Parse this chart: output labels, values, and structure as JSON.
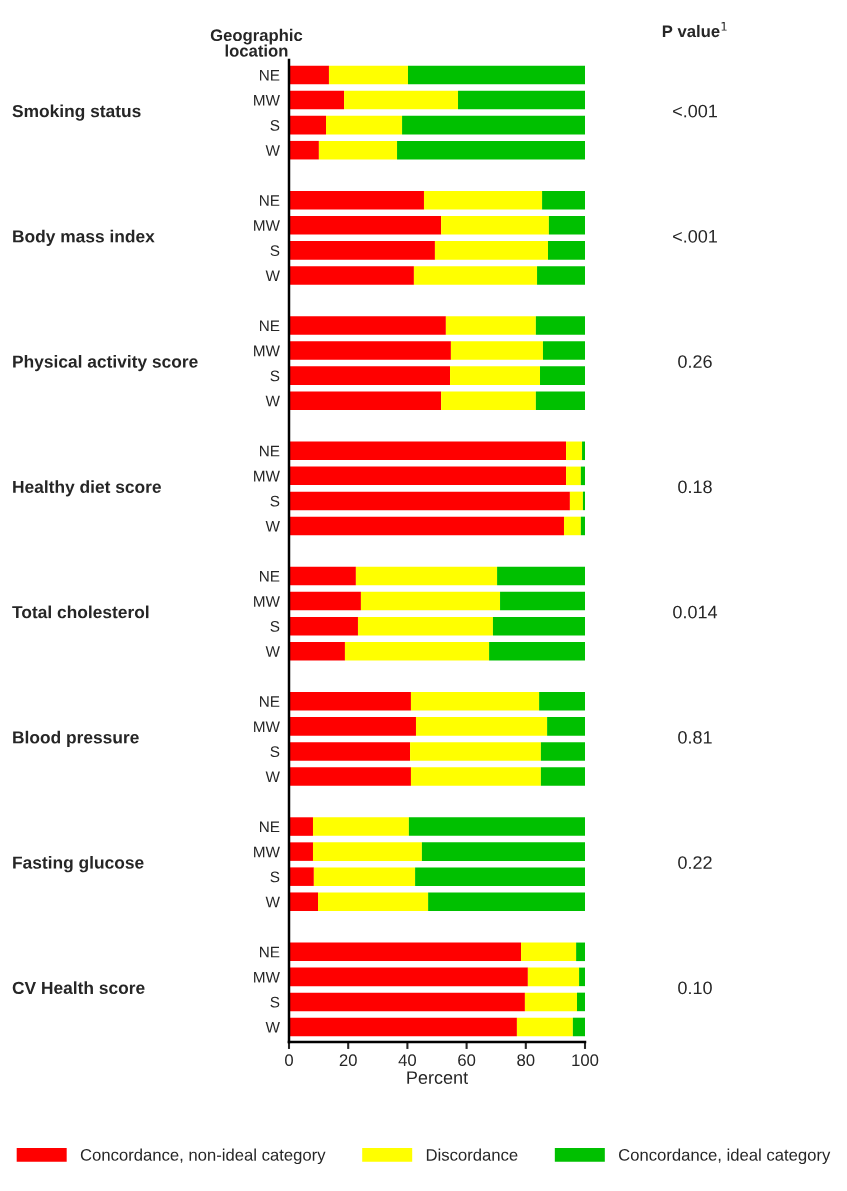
{
  "chart_data": {
    "type": "bar",
    "orientation": "horizontal",
    "stacked": true,
    "ylabel": "Geographic\nlocation",
    "xlabel": "Percent",
    "categories": [
      "NE",
      "MW",
      "S",
      "W",
      null,
      "NE",
      "MW",
      "S",
      "W",
      null,
      "NE",
      "MW",
      "S",
      "W",
      null,
      "NE",
      "MW",
      "S",
      "W",
      null,
      "NE",
      "MW",
      "S",
      "W",
      null,
      "NE",
      "MW",
      "S",
      "W",
      null,
      "NE",
      "MW",
      "S",
      "W",
      null,
      "NE",
      "MW",
      "S",
      "W"
    ],
    "xlim": [
      0,
      100
    ],
    "xticks": [
      0,
      20,
      40,
      60,
      80,
      100
    ],
    "legend": "bottom",
    "annotations": [
      "P value$^{1}$",
      "Smoking status",
      "Body mass index",
      "Physical activity score",
      "Healthy diet score",
      "Total cholesterol",
      "Blood pressure",
      "Fasting glucose",
      "CV Health score",
      "<.001",
      "<.001",
      "0.26",
      "0.18",
      "0.014",
      "0.81",
      "0.22",
      "0.10"
    ],
    "series": [
      {
        "name": "Concordance, non-ideal category",
        "color": "#ff0000",
        "values": [
          13.5,
          18.6,
          12.5,
          10.1,
          null,
          45.6,
          51.4,
          49.3,
          42.2,
          null,
          53.0,
          54.7,
          54.4,
          51.4,
          null,
          93.6,
          93.6,
          94.9,
          92.9,
          null,
          22.6,
          24.3,
          23.3,
          18.9,
          null,
          41.2,
          42.9,
          40.9,
          41.2,
          null,
          8.1,
          8.1,
          8.4,
          9.8,
          null,
          78.4,
          80.7,
          79.7,
          77.0
        ]
      },
      {
        "name": "Discordance",
        "color": "#ffff00",
        "values": [
          26.7,
          38.5,
          25.7,
          26.4,
          null,
          39.9,
          36.4,
          38.2,
          41.6,
          null,
          30.4,
          31.1,
          30.4,
          32.0,
          null,
          5.4,
          5.0,
          4.4,
          5.7,
          null,
          47.7,
          47.0,
          45.6,
          48.7,
          null,
          43.3,
          44.3,
          44.2,
          43.9,
          null,
          32.4,
          36.8,
          34.2,
          37.2,
          null,
          18.6,
          17.3,
          17.6,
          18.9
        ]
      },
      {
        "name": "Concordance, ideal category",
        "color": "#00c000",
        "values": [
          59.8,
          42.9,
          61.8,
          63.5,
          null,
          14.5,
          12.2,
          12.5,
          16.2,
          null,
          16.6,
          14.2,
          15.2,
          16.6,
          null,
          1.0,
          1.4,
          0.7,
          1.4,
          null,
          29.7,
          28.7,
          31.1,
          32.4,
          null,
          15.5,
          12.8,
          14.9,
          14.9,
          null,
          59.5,
          55.1,
          57.4,
          53.0,
          null,
          3.0,
          2.0,
          2.7,
          4.1
        ]
      }
    ]
  }
}
